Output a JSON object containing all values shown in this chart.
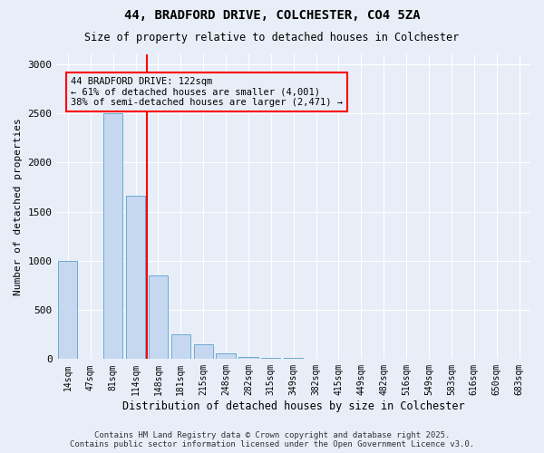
{
  "title1": "44, BRADFORD DRIVE, COLCHESTER, CO4 5ZA",
  "title2": "Size of property relative to detached houses in Colchester",
  "xlabel": "Distribution of detached houses by size in Colchester",
  "ylabel": "Number of detached properties",
  "categories": [
    "14sqm",
    "47sqm",
    "81sqm",
    "114sqm",
    "148sqm",
    "181sqm",
    "215sqm",
    "248sqm",
    "282sqm",
    "315sqm",
    "349sqm",
    "382sqm",
    "415sqm",
    "449sqm",
    "482sqm",
    "516sqm",
    "549sqm",
    "583sqm",
    "616sqm",
    "650sqm",
    "683sqm"
  ],
  "values": [
    1000,
    0,
    2500,
    1660,
    850,
    250,
    150,
    60,
    25,
    12,
    8,
    5,
    4,
    3,
    2,
    2,
    1,
    1,
    1,
    1,
    1
  ],
  "bar_color": "#c5d8f0",
  "bar_edgecolor": "#6aaad4",
  "vline_color": "red",
  "annotation_text": "44 BRADFORD DRIVE: 122sqm\n← 61% of detached houses are smaller (4,001)\n38% of semi-detached houses are larger (2,471) →",
  "annotation_box_facecolor": "#e8eef8",
  "annotation_box_edgecolor": "red",
  "ylim": [
    0,
    3100
  ],
  "yticks": [
    0,
    500,
    1000,
    1500,
    2000,
    2500,
    3000
  ],
  "footnote1": "Contains HM Land Registry data © Crown copyright and database right 2025.",
  "footnote2": "Contains public sector information licensed under the Open Government Licence v3.0.",
  "background_color": "#e8eef8",
  "grid_color": "white"
}
